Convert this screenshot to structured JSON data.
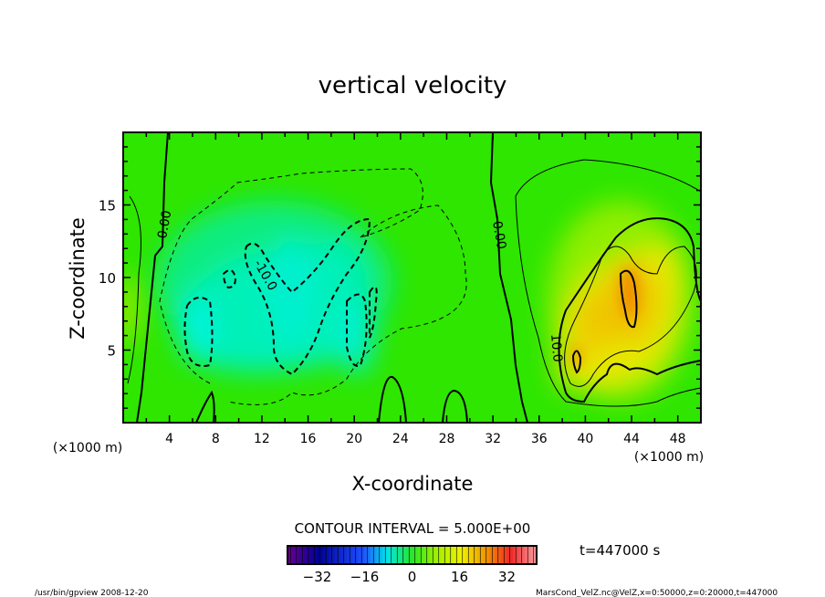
{
  "chart_data": {
    "type": "heatmap",
    "subtype": "contour",
    "title": "vertical velocity",
    "xlabel": "X-coordinate",
    "ylabel": "Z-coordinate",
    "x_units": "(×1000 m)",
    "y_units": "(×1000 m)",
    "xlim": [
      0,
      50
    ],
    "ylim": [
      0,
      20
    ],
    "xticks": [
      4,
      8,
      12,
      16,
      20,
      24,
      28,
      32,
      36,
      40,
      44,
      48
    ],
    "yticks": [
      5,
      10,
      15
    ],
    "contour_interval_label": "CONTOUR INTERVAL = 5.000E+00",
    "contour_interval": 5,
    "contour_labels": [
      "0.00",
      "-10.0",
      "0.00",
      "10.0"
    ],
    "colorbar": {
      "range": [
        -42,
        42
      ],
      "ticks": [
        -32,
        -16,
        0,
        16,
        32
      ]
    },
    "time_label": "t=447000 s",
    "colors": {
      "base": "#2ee600",
      "negative": "#00f0c8",
      "positive": "#f0e800",
      "peak": "#f09000"
    }
  },
  "footer": {
    "left": "/usr/bin/gpview  2008-12-20",
    "right": "MarsCond_VelZ.nc@VelZ,x=0:50000,z=0:20000,t=447000"
  }
}
